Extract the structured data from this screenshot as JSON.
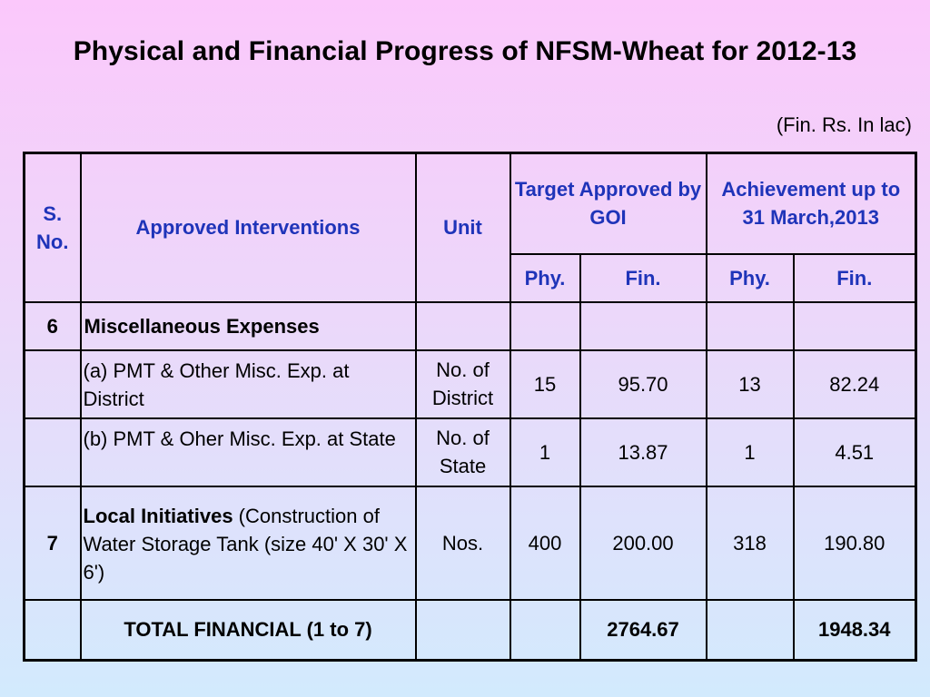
{
  "title": "Physical and Financial Progress of NFSM-Wheat for 2012-13",
  "units_note": "(Fin. Rs. In lac)",
  "header": {
    "sno": "S. No.",
    "interventions": "Approved Interventions",
    "unit": "Unit",
    "target": "Target Approved by GOI",
    "achievement": "Achievement up to 31 March,2013",
    "phy1": "Phy.",
    "fin1": "Fin.",
    "phy2": "Phy.",
    "fin2": "Fin."
  },
  "rows": [
    {
      "sno": "6",
      "intervention": "Miscellaneous Expenses",
      "unit": "",
      "t_phy": "",
      "t_fin": "",
      "a_phy": "",
      "a_fin": ""
    },
    {
      "sno": "",
      "intervention": "(a) PMT & Other Misc. Exp. at District",
      "unit": "No. of District",
      "t_phy": "15",
      "t_fin": "95.70",
      "a_phy": "13",
      "a_fin": "82.24"
    },
    {
      "sno": "",
      "intervention": "(b) PMT & Oher Misc. Exp. at State",
      "unit": "No. of State",
      "t_phy": "1",
      "t_fin": "13.87",
      "a_phy": "1",
      "a_fin": "4.51"
    },
    {
      "sno": "7",
      "intervention_bold": "Local Initiatives",
      "intervention_rest": " (Construction of Water Storage Tank (size 40' X 30' X 6')",
      "unit": "Nos.",
      "t_phy": "400",
      "t_fin": "200.00",
      "a_phy": "318",
      "a_fin": "190.80"
    }
  ],
  "total": {
    "label": "TOTAL FINANCIAL (1 to 7)",
    "t_fin": "2764.67",
    "a_fin": "1948.34"
  }
}
